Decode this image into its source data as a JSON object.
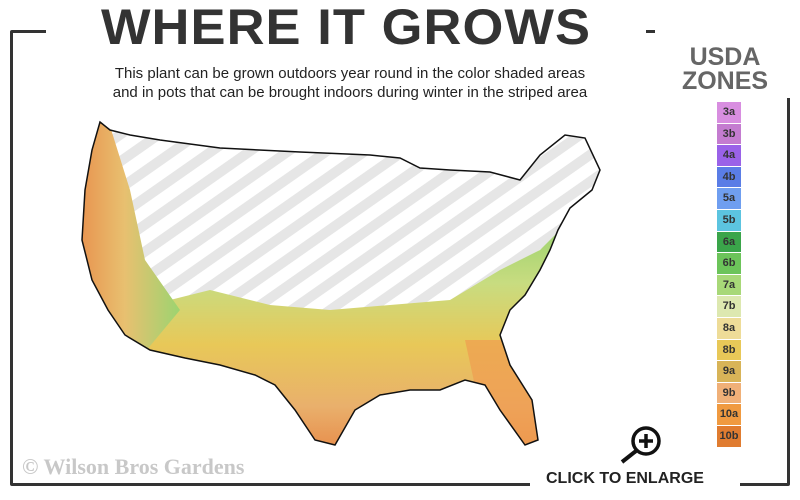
{
  "title": "WHERE IT GROWS",
  "subtitle_line1": "This plant can be grown outdoors year round in the color shaded areas",
  "subtitle_line2": "and in pots that can be brought indoors during winter in the striped area",
  "legend": {
    "title_line1": "USDA",
    "title_line2": "ZONES",
    "zones": [
      {
        "label": "3a",
        "color": "#d88ee0"
      },
      {
        "label": "3b",
        "color": "#c47cd0"
      },
      {
        "label": "4a",
        "color": "#9a62e8"
      },
      {
        "label": "4b",
        "color": "#5a7de6"
      },
      {
        "label": "5a",
        "color": "#6f9ef0"
      },
      {
        "label": "5b",
        "color": "#5cc4e0"
      },
      {
        "label": "6a",
        "color": "#3aa54a"
      },
      {
        "label": "6b",
        "color": "#6cc45a"
      },
      {
        "label": "7a",
        "color": "#a8d878"
      },
      {
        "label": "7b",
        "color": "#dde8b0"
      },
      {
        "label": "8a",
        "color": "#eedc98"
      },
      {
        "label": "8b",
        "color": "#e8c858"
      },
      {
        "label": "9a",
        "color": "#d8b458"
      },
      {
        "label": "9b",
        "color": "#f0b078"
      },
      {
        "label": "10a",
        "color": "#f09a40"
      },
      {
        "label": "10b",
        "color": "#e07c30"
      }
    ]
  },
  "copyright": "© Wilson Bros Gardens",
  "enlarge": {
    "label": "CLICK TO ENLARGE",
    "icon": "zoom-in-icon"
  }
}
